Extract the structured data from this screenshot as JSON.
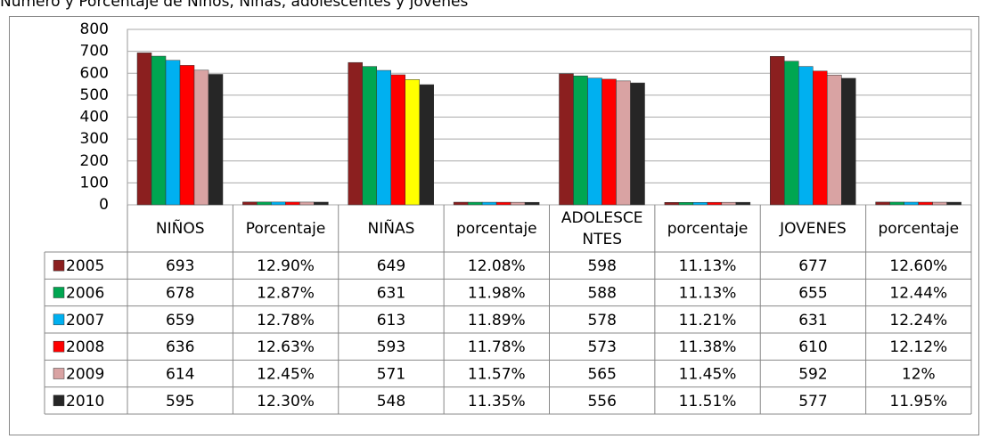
{
  "chart_data": {
    "type": "bar",
    "title": "Número y Porcentaje de Niños, Niñas, adolescentes y jóvenes",
    "categories": [
      "NIÑOS",
      "Porcentaje",
      "NIÑAS",
      "porcentaje",
      "ADOLESCENTES",
      "porcentaje",
      "JOVENES",
      "porcentaje"
    ],
    "series": [
      {
        "name": "2005",
        "color": "#8b1f1f",
        "values": [
          693,
          12.9,
          649,
          12.08,
          598,
          11.13,
          677,
          12.6
        ],
        "value_labels": [
          "693",
          "12.90%",
          "649",
          "12.08%",
          "598",
          "11.13%",
          "677",
          "12.60%"
        ]
      },
      {
        "name": "2006",
        "color": "#00a651",
        "values": [
          678,
          12.87,
          631,
          11.98,
          588,
          11.13,
          655,
          12.44
        ],
        "value_labels": [
          "678",
          "12.87%",
          "631",
          "11.98%",
          "588",
          "11.13%",
          "655",
          "12.44%"
        ]
      },
      {
        "name": "2007",
        "color": "#00b0f0",
        "values": [
          659,
          12.78,
          613,
          11.89,
          578,
          11.21,
          631,
          12.24
        ],
        "value_labels": [
          "659",
          "12.78%",
          "613",
          "11.89%",
          "578",
          "11.21%",
          "631",
          "12.24%"
        ]
      },
      {
        "name": "2008",
        "color": "#ff0000",
        "values": [
          636,
          12.63,
          593,
          11.78,
          573,
          11.38,
          610,
          12.12
        ],
        "value_labels": [
          "636",
          "12.63%",
          "593",
          "11.78%",
          "573",
          "11.38%",
          "610",
          "12.12%"
        ]
      },
      {
        "name": "2009",
        "color": "#d9a3a3",
        "colors": [
          "#d9a3a3",
          "#d9a3a3",
          "#ffff00",
          "#d9a3a3",
          "#d9a3a3",
          "#d9a3a3",
          "#d9a3a3",
          "#d9a3a3"
        ],
        "values": [
          614,
          12.45,
          571,
          11.57,
          565,
          11.45,
          592,
          12
        ],
        "value_labels": [
          "614",
          "12.45%",
          "571",
          "11.57%",
          "565",
          "11.45%",
          "592",
          "12%"
        ]
      },
      {
        "name": "2010",
        "color": "#262626",
        "values": [
          595,
          12.3,
          548,
          11.35,
          556,
          11.51,
          577,
          11.95
        ],
        "value_labels": [
          "595",
          "12.30%",
          "548",
          "11.35%",
          "556",
          "11.51%",
          "577",
          "11.95%"
        ]
      }
    ],
    "ylim": [
      0,
      800
    ],
    "yticks": [
      0,
      100,
      200,
      300,
      400,
      500,
      600,
      700,
      800
    ],
    "grid": true
  }
}
